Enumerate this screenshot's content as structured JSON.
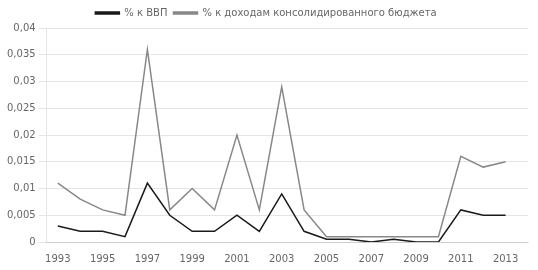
{
  "chart_data": {
    "type": "line",
    "x": [
      1993,
      1994,
      1995,
      1996,
      1997,
      1998,
      1999,
      2000,
      2001,
      2002,
      2003,
      2004,
      2005,
      2006,
      2007,
      2008,
      2009,
      2010,
      2011,
      2012,
      2013
    ],
    "series": [
      {
        "name": "% к ВВП",
        "color": "#1a1a1a",
        "values": [
          0.003,
          0.002,
          0.002,
          0.001,
          0.011,
          0.005,
          0.002,
          0.002,
          0.005,
          0.002,
          0.009,
          0.002,
          0.0005,
          0.0005,
          0.0,
          0.0005,
          0.0,
          0.0,
          0.006,
          0.005,
          0.005
        ]
      },
      {
        "name": "% к доходам консолидированного бюджета",
        "color": "#888888",
        "values": [
          0.011,
          0.008,
          0.006,
          0.005,
          0.036,
          0.006,
          0.01,
          0.006,
          0.02,
          0.006,
          0.029,
          0.006,
          0.001,
          0.001,
          0.001,
          0.001,
          0.001,
          0.001,
          0.016,
          0.014,
          0.015
        ]
      }
    ],
    "xlim": [
      1992.5,
      2014
    ],
    "xticks": [
      1993,
      1995,
      1997,
      1999,
      2001,
      2003,
      2005,
      2007,
      2009,
      2011,
      2013
    ],
    "ylim": [
      0,
      0.04
    ],
    "yticks": [
      0,
      {
        "value": 0.005,
        "label": "0,005"
      },
      {
        "value": 0.01,
        "label": "0,01"
      },
      {
        "value": 0.015,
        "label": "0,015"
      },
      {
        "value": 0.02,
        "label": "0,02"
      },
      {
        "value": 0.025,
        "label": "0,025"
      },
      {
        "value": 0.03,
        "label": "0,03"
      },
      {
        "value": 0.035,
        "label": "0,035"
      },
      {
        "value": 0.04,
        "label": "0,04"
      }
    ],
    "grid": "y",
    "legend": "top"
  }
}
